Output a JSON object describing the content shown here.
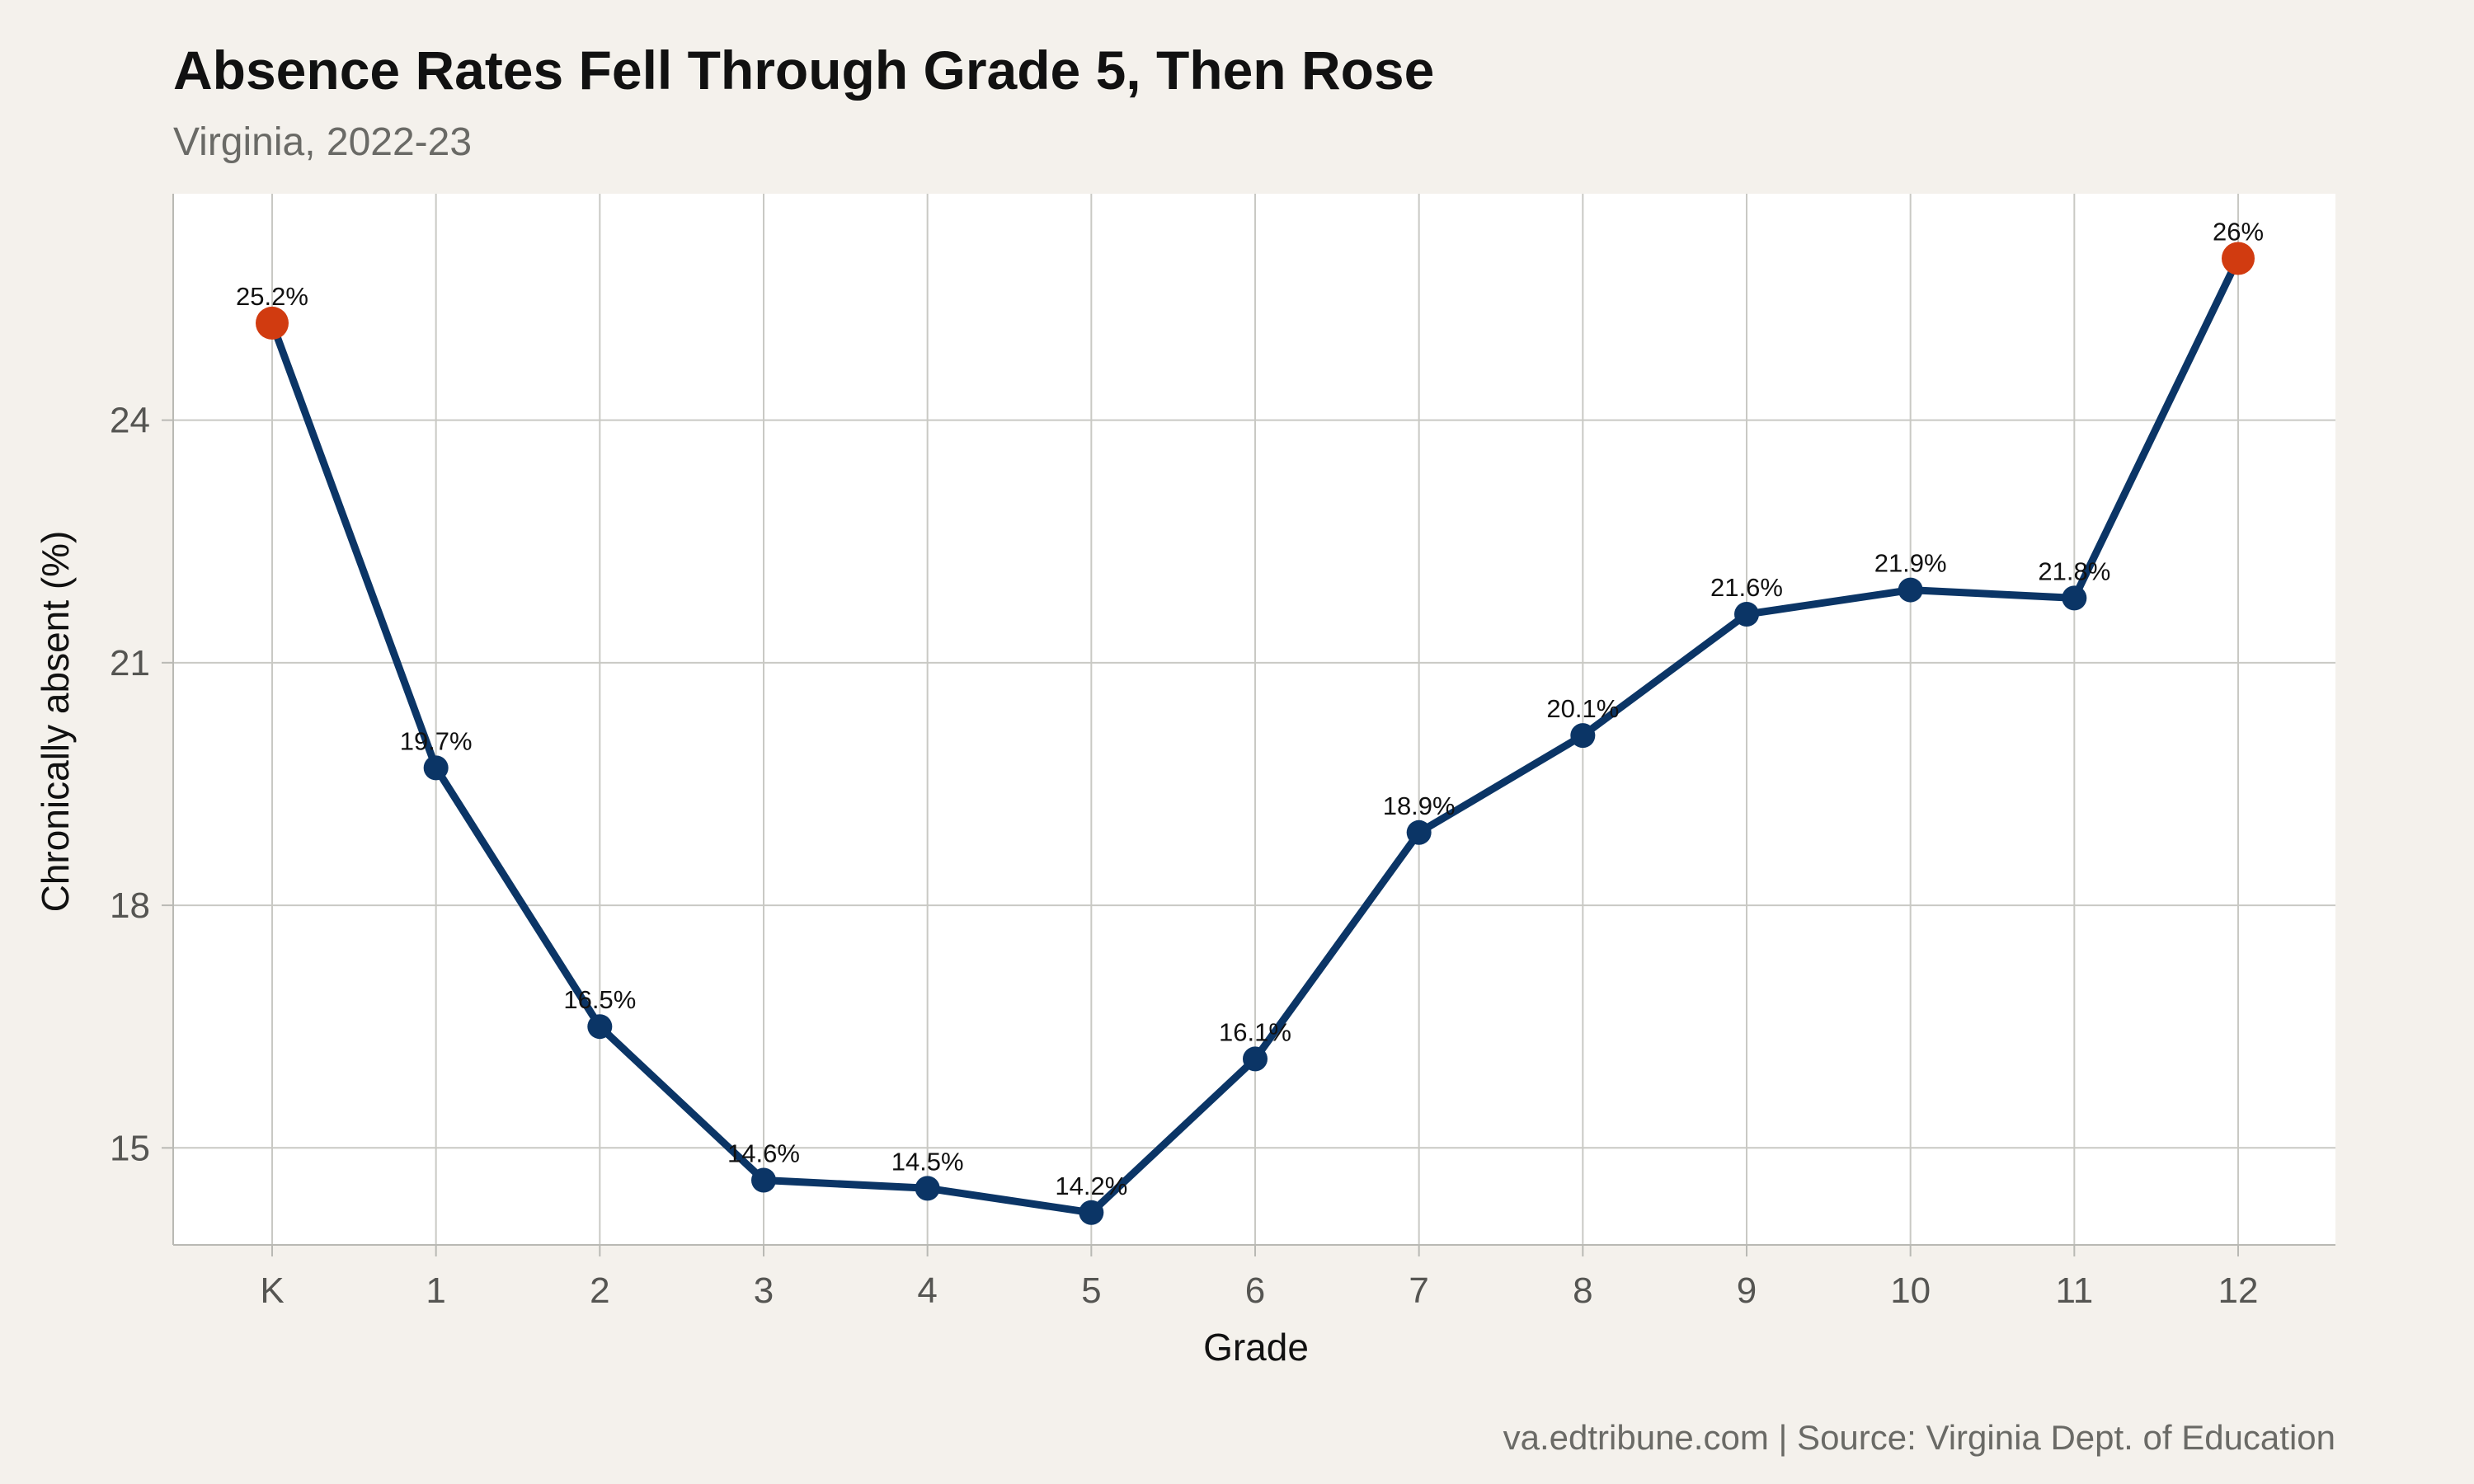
{
  "chart_data": {
    "type": "line",
    "title": "Absence Rates Fell Through Grade 5, Then Rose",
    "subtitle": "Virginia, 2022-23",
    "xlabel": "Grade",
    "ylabel": "Chronically absent (%)",
    "caption": "va.edtribune.com | Source: Virginia Dept. of Education",
    "categories": [
      "K",
      "1",
      "2",
      "3",
      "4",
      "5",
      "6",
      "7",
      "8",
      "9",
      "10",
      "11",
      "12"
    ],
    "values": [
      25.2,
      19.7,
      16.5,
      14.6,
      14.5,
      14.2,
      16.1,
      18.9,
      20.1,
      21.6,
      21.9,
      21.8,
      26.0
    ],
    "data_labels": [
      "25.2%",
      "19.7%",
      "16.5%",
      "14.6%",
      "14.5%",
      "14.2%",
      "16.1%",
      "18.9%",
      "20.1%",
      "21.6%",
      "21.9%",
      "21.8%",
      "26%"
    ],
    "highlighted": [
      "K",
      "12"
    ],
    "ylim": [
      13.8,
      26.8
    ],
    "yticks": [
      15,
      18,
      21,
      24
    ],
    "grid": true,
    "colors": {
      "line": "#0b3566",
      "point": "#0b3566",
      "highlight": "#d13b10",
      "panel": "#ffffff",
      "background": "#f4f1ec",
      "grid": "#c9c9c4"
    }
  }
}
